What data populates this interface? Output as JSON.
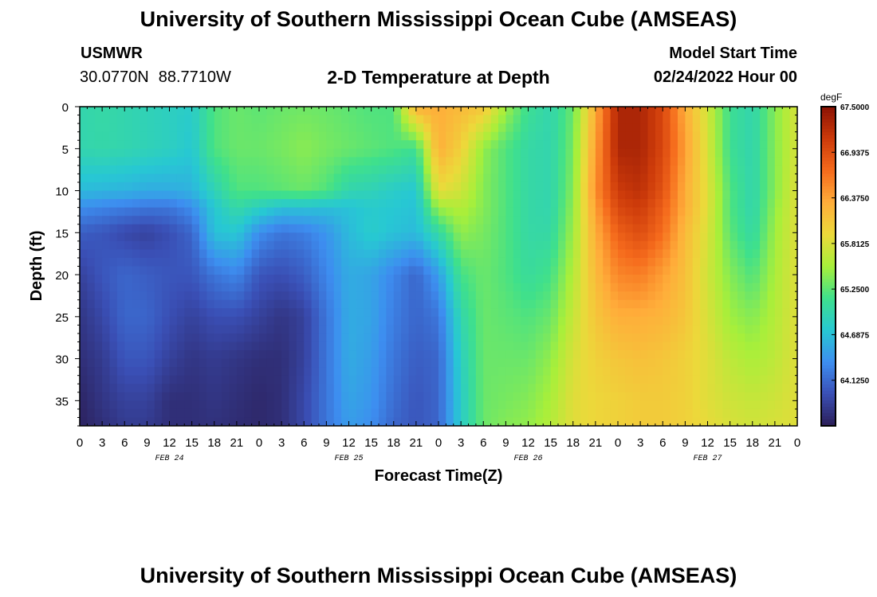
{
  "header": {
    "title": "University of Southern Mississippi Ocean Cube (AMSEAS)",
    "station": "USMWR",
    "lat": "30.0770N",
    "lon": "88.7710W",
    "subtitle": "2-D Temperature at Depth",
    "model_start_label": "Model Start Time",
    "model_start_value": "02/24/2022 Hour 00"
  },
  "footer": {
    "title": "University of Southern Mississippi Ocean Cube (AMSEAS)"
  },
  "chart_data": {
    "type": "heatmap",
    "title": "2-D Temperature at Depth",
    "xlabel": "Forecast Time(Z)",
    "ylabel": "Depth (ft)",
    "x_tick_labels": [
      "0",
      "3",
      "6",
      "9",
      "12",
      "15",
      "18",
      "21",
      "0",
      "3",
      "6",
      "9",
      "12",
      "15",
      "18",
      "21",
      "0",
      "3",
      "6",
      "9",
      "12",
      "15",
      "18",
      "21",
      "0",
      "3",
      "6",
      "9",
      "12",
      "15",
      "18",
      "21",
      "0"
    ],
    "x_range_hours": [
      0,
      96
    ],
    "date_labels": [
      {
        "text": "FEB 24",
        "hour": 12
      },
      {
        "text": "FEB 25",
        "hour": 36
      },
      {
        "text": "FEB 26",
        "hour": 60
      },
      {
        "text": "FEB 27",
        "hour": 84
      }
    ],
    "y_ticks": [
      0,
      5,
      10,
      15,
      20,
      25,
      30,
      35
    ],
    "y_range_ft": [
      0,
      38
    ],
    "colorbar": {
      "unit": "degF",
      "min": 63.5625,
      "max": 67.5,
      "tick_values": [
        67.5,
        66.9375,
        66.375,
        65.8125,
        65.25,
        64.6875,
        64.125
      ],
      "tick_labels": [
        "67.5000",
        "66.9375",
        "66.3750",
        "65.8125",
        "65.2500",
        "64.6875",
        "64.1250"
      ],
      "colors": [
        "#2b1e57",
        "#3a4fb5",
        "#3d8ef0",
        "#27c8d3",
        "#3fe08c",
        "#a8ef3a",
        "#ecd93a",
        "#ffad3a",
        "#f56a1c",
        "#cc3a0a",
        "#8a1204"
      ]
    },
    "time_hours": [
      0,
      3,
      6,
      9,
      12,
      15,
      18,
      21,
      24,
      27,
      30,
      33,
      36,
      39,
      42,
      45,
      48,
      51,
      54,
      57,
      60,
      63,
      66,
      69,
      72,
      75,
      78,
      81,
      84,
      87,
      90,
      93,
      96
    ],
    "depths_ft": [
      0,
      5,
      10,
      12,
      15,
      20,
      25,
      30,
      35,
      38
    ],
    "temperature_degF": [
      [
        64.95,
        65.0,
        64.95,
        64.9,
        64.85,
        64.8,
        65.2,
        65.3,
        65.25,
        65.3,
        65.32,
        65.3,
        65.25,
        65.2,
        65.2,
        66.3,
        66.3,
        66.2,
        66.1,
        65.5,
        65.1,
        64.95,
        65.3,
        66.3,
        67.3,
        67.3,
        67.0,
        66.3,
        65.75,
        65.1,
        64.95,
        65.4,
        65.8
      ],
      [
        64.95,
        64.98,
        64.95,
        64.9,
        64.85,
        64.75,
        65.2,
        65.3,
        65.3,
        65.35,
        65.42,
        65.35,
        65.3,
        65.25,
        65.2,
        65.1,
        66.3,
        66.0,
        65.45,
        65.2,
        65.0,
        64.95,
        65.35,
        66.4,
        67.3,
        67.3,
        67.0,
        66.4,
        65.8,
        65.1,
        64.95,
        65.4,
        65.8
      ],
      [
        64.65,
        64.62,
        64.6,
        64.55,
        64.55,
        64.6,
        64.9,
        65.2,
        65.2,
        65.25,
        65.3,
        65.2,
        64.95,
        64.9,
        64.8,
        64.75,
        65.9,
        65.75,
        65.4,
        65.2,
        65.0,
        64.95,
        65.4,
        66.5,
        67.1,
        67.2,
        66.9,
        66.3,
        65.85,
        65.2,
        64.95,
        65.4,
        65.85
      ],
      [
        64.35,
        64.3,
        64.25,
        64.2,
        64.2,
        64.35,
        64.75,
        65.0,
        64.85,
        64.7,
        64.7,
        64.68,
        64.7,
        64.78,
        64.75,
        64.7,
        65.5,
        65.6,
        65.4,
        65.2,
        65.0,
        64.95,
        65.45,
        66.4,
        67.0,
        67.1,
        66.8,
        66.3,
        65.85,
        65.2,
        64.95,
        65.45,
        65.85
      ],
      [
        64.05,
        64.0,
        63.9,
        63.85,
        63.95,
        64.1,
        64.7,
        64.75,
        64.35,
        64.2,
        64.25,
        64.4,
        64.65,
        64.8,
        64.7,
        64.65,
        65.0,
        65.45,
        65.35,
        65.2,
        65.0,
        65.0,
        65.5,
        66.3,
        66.8,
        66.95,
        66.7,
        66.2,
        65.8,
        65.25,
        65.0,
        65.5,
        65.85
      ],
      [
        63.85,
        64.0,
        64.1,
        64.05,
        64.0,
        64.0,
        64.2,
        64.3,
        64.0,
        63.95,
        64.05,
        64.3,
        64.55,
        64.5,
        64.3,
        64.1,
        64.45,
        65.15,
        65.3,
        65.2,
        65.05,
        65.15,
        65.6,
        66.2,
        66.55,
        66.6,
        66.4,
        66.15,
        65.75,
        65.4,
        65.2,
        65.55,
        65.85
      ],
      [
        63.75,
        63.9,
        64.1,
        64.1,
        63.95,
        63.85,
        63.95,
        63.95,
        63.85,
        63.75,
        63.85,
        64.2,
        64.55,
        64.5,
        64.25,
        64.1,
        64.2,
        64.95,
        65.3,
        65.25,
        65.2,
        65.3,
        65.7,
        66.1,
        66.3,
        66.3,
        66.25,
        66.1,
        65.8,
        65.5,
        65.4,
        65.6,
        65.85
      ],
      [
        63.7,
        63.8,
        64.0,
        64.0,
        63.85,
        63.75,
        63.8,
        63.75,
        63.7,
        63.7,
        63.85,
        64.2,
        64.55,
        64.45,
        64.2,
        64.05,
        64.1,
        64.85,
        65.3,
        65.3,
        65.3,
        65.45,
        65.8,
        66.0,
        66.1,
        66.15,
        66.1,
        66.0,
        65.85,
        65.65,
        65.55,
        65.65,
        65.85
      ],
      [
        63.62,
        63.75,
        63.85,
        63.85,
        63.7,
        63.7,
        63.75,
        63.7,
        63.65,
        63.7,
        63.9,
        64.2,
        64.5,
        64.4,
        64.15,
        64.0,
        64.1,
        64.8,
        65.3,
        65.35,
        65.4,
        65.55,
        65.85,
        65.95,
        66.0,
        66.05,
        66.05,
        66.0,
        65.85,
        65.75,
        65.7,
        65.75,
        65.85
      ],
      [
        63.6,
        63.7,
        63.8,
        63.8,
        63.7,
        63.7,
        63.72,
        63.68,
        63.65,
        63.7,
        63.9,
        64.2,
        64.45,
        64.35,
        64.1,
        64.0,
        64.1,
        64.8,
        65.3,
        65.4,
        65.45,
        65.6,
        65.85,
        65.95,
        66.0,
        66.05,
        66.05,
        66.0,
        65.9,
        65.8,
        65.75,
        65.8,
        65.85
      ]
    ]
  }
}
